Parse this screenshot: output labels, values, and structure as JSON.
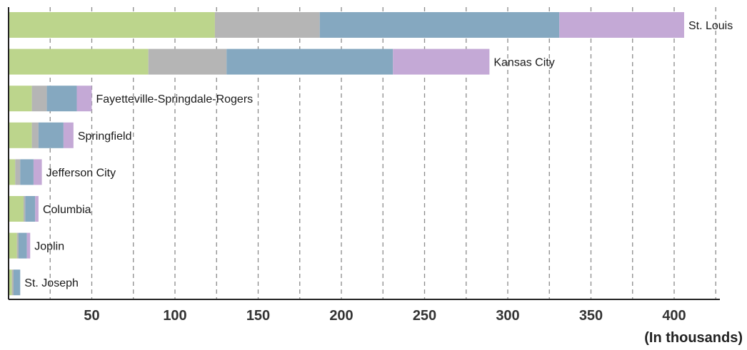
{
  "chart_data": {
    "type": "bar",
    "orientation": "horizontal",
    "stacked": true,
    "title": "",
    "xlabel": "",
    "ylabel": "",
    "unit_label": "(In thousands)",
    "xlim": [
      0,
      425
    ],
    "x_ticks": [
      50,
      100,
      150,
      200,
      250,
      300,
      350,
      400
    ],
    "grid": true,
    "legend": "none",
    "categories": [
      "St. Louis",
      "Kansas City",
      "Fayetteville-Springdale-Rogers",
      "Springfield",
      "Jefferson City",
      "Columbia",
      "Joplin",
      "St. Joseph"
    ],
    "series": [
      {
        "color": "#bcd58c",
        "values": [
          124,
          84,
          14,
          14,
          4,
          9,
          5,
          2
        ]
      },
      {
        "color": "#b5b5b5",
        "values": [
          63,
          47,
          9,
          4,
          3,
          1,
          1,
          1
        ]
      },
      {
        "color": "#85a8c0",
        "values": [
          144,
          100,
          18,
          15,
          8,
          6,
          5,
          4
        ]
      },
      {
        "color": "#c4a9d6",
        "values": [
          75,
          58,
          9,
          6,
          5,
          2,
          2,
          0
        ]
      }
    ]
  }
}
